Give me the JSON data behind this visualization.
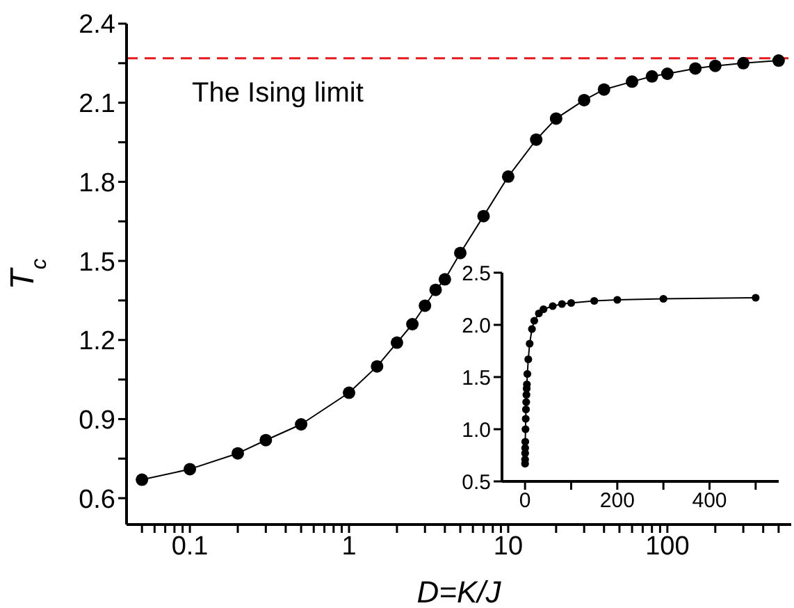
{
  "chart_data": [
    {
      "type": "line",
      "xlabel": "D=K/J",
      "ylabel": "T$_{c}$",
      "log": "x",
      "marker": "circle",
      "line_style": "solid",
      "x": [
        0.05,
        0.1,
        0.2,
        0.3,
        0.5,
        1,
        1.5,
        2,
        2.5,
        3,
        3.5,
        4,
        5,
        7,
        10,
        15,
        20,
        30,
        40,
        60,
        80,
        100,
        150,
        200,
        300,
        500
      ],
      "series": [
        {
          "color": "#000000",
          "values": [
            0.67,
            0.71,
            0.77,
            0.82,
            0.88,
            1.0,
            1.1,
            1.19,
            1.26,
            1.33,
            1.39,
            1.43,
            1.53,
            1.67,
            1.82,
            1.96,
            2.04,
            2.11,
            2.15,
            2.18,
            2.2,
            2.21,
            2.23,
            2.24,
            2.25,
            2.26
          ]
        }
      ],
      "xlim": [
        0.04,
        600
      ],
      "xticks": [
        {
          "value": 0.05,
          "label": null
        },
        {
          "value": 0.06,
          "label": null
        },
        {
          "value": 0.07,
          "label": null
        },
        {
          "value": 0.08,
          "label": null
        },
        {
          "value": 0.09,
          "label": null
        },
        0.1,
        {
          "value": 0.2,
          "label": null
        },
        {
          "value": 0.3,
          "label": null
        },
        {
          "value": 0.4,
          "label": null
        },
        {
          "value": 0.5,
          "label": null
        },
        {
          "value": 0.6,
          "label": null
        },
        {
          "value": 0.7,
          "label": null
        },
        {
          "value": 0.8,
          "label": null
        },
        {
          "value": 0.9,
          "label": null
        },
        1,
        {
          "value": 2,
          "label": null
        },
        {
          "value": 3,
          "label": null
        },
        {
          "value": 4,
          "label": null
        },
        {
          "value": 5,
          "label": null
        },
        {
          "value": 6,
          "label": null
        },
        {
          "value": 7,
          "label": null
        },
        {
          "value": 8,
          "label": null
        },
        {
          "value": 9,
          "label": null
        },
        10,
        {
          "value": 20,
          "label": null
        },
        {
          "value": 30,
          "label": null
        },
        {
          "value": 40,
          "label": null
        },
        {
          "value": 50,
          "label": null
        },
        {
          "value": 60,
          "label": null
        },
        {
          "value": 70,
          "label": null
        },
        {
          "value": 80,
          "label": null
        },
        {
          "value": 90,
          "label": null
        },
        100,
        {
          "value": 200,
          "label": null
        },
        {
          "value": 300,
          "label": null
        },
        {
          "value": 400,
          "label": null
        },
        {
          "value": 500,
          "label": null
        }
      ],
      "ylim": [
        0.5,
        2.4
      ],
      "yticks": [
        0.6,
        {
          "value": 0.75,
          "label": null
        },
        0.9,
        {
          "value": 1.05,
          "label": null
        },
        1.2,
        {
          "value": 1.35,
          "label": null
        },
        1.5,
        {
          "value": 1.65,
          "label": null
        },
        1.8,
        {
          "value": 1.95,
          "label": null
        },
        2.1,
        {
          "value": 2.25,
          "label": null
        },
        2.4
      ],
      "ref_lines": [
        {
          "axis": "y",
          "value": 2.269,
          "label": "The Ising limit",
          "color": "#e8191c",
          "line_style": "dashed"
        }
      ]
    },
    {
      "type": "line",
      "marker": "circle",
      "line_style": "solid",
      "x": [
        0.05,
        0.1,
        0.2,
        0.3,
        0.5,
        1,
        1.5,
        2,
        2.5,
        3,
        3.5,
        4,
        5,
        7,
        10,
        15,
        20,
        30,
        40,
        60,
        80,
        100,
        150,
        200,
        300,
        500
      ],
      "series": [
        {
          "color": "#000000",
          "values": [
            0.67,
            0.71,
            0.77,
            0.82,
            0.88,
            1.0,
            1.1,
            1.19,
            1.26,
            1.33,
            1.39,
            1.43,
            1.53,
            1.67,
            1.82,
            1.96,
            2.04,
            2.11,
            2.15,
            2.18,
            2.2,
            2.21,
            2.23,
            2.24,
            2.25,
            2.26
          ]
        }
      ],
      "xlim": [
        -50,
        550
      ],
      "xticks": [
        0,
        {
          "value": 100,
          "label": null
        },
        200,
        {
          "value": 300,
          "label": null
        },
        400,
        {
          "value": 500,
          "label": null
        }
      ],
      "ylim": [
        0.5,
        2.5
      ],
      "yticks": [
        {
          "value": 0.5,
          "label": "0.5"
        },
        {
          "value": 1.0,
          "label": "1.0"
        },
        {
          "value": 1.5,
          "label": "1.5"
        },
        {
          "value": 2.0,
          "label": "2.0"
        },
        {
          "value": 2.5,
          "label": "2.5"
        }
      ]
    }
  ]
}
